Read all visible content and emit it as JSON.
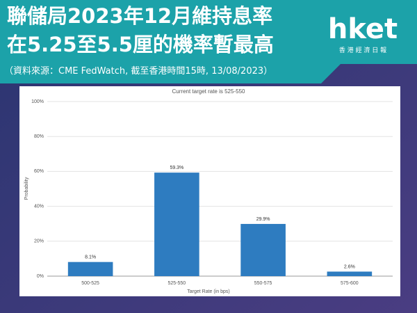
{
  "header": {
    "title_lines": [
      "聯儲局2023年12月維持息率",
      "在5.25至5.5厘的機率暫最高"
    ],
    "source": "（資料來源：CME FedWatch, 截至香港時間15時, 13/08/2023）",
    "logo": "hket",
    "logo_subtitle": "香 港 經 濟 日 報"
  },
  "chart_data": {
    "type": "bar",
    "title": "Current target rate is 525-550",
    "x_label": "Target Rate (in bps)",
    "y_label": "Probability",
    "categories": [
      "500-525",
      "525-550",
      "550-575",
      "575-600"
    ],
    "values": [
      8.1,
      59.3,
      29.9,
      2.6
    ],
    "value_labels": [
      "8.1%",
      "59.3%",
      "29.9%",
      "2.6%"
    ],
    "color": "#2e7cc0",
    "ylim": [
      0,
      100
    ],
    "yticks": [
      {
        "value": 0,
        "label": "0%"
      },
      {
        "value": 20,
        "label": "20%"
      },
      {
        "value": 40,
        "label": "40%"
      },
      {
        "value": 60,
        "label": "60%"
      },
      {
        "value": 80,
        "label": "80%"
      },
      {
        "value": 100,
        "label": "100%"
      }
    ],
    "grid": true
  }
}
